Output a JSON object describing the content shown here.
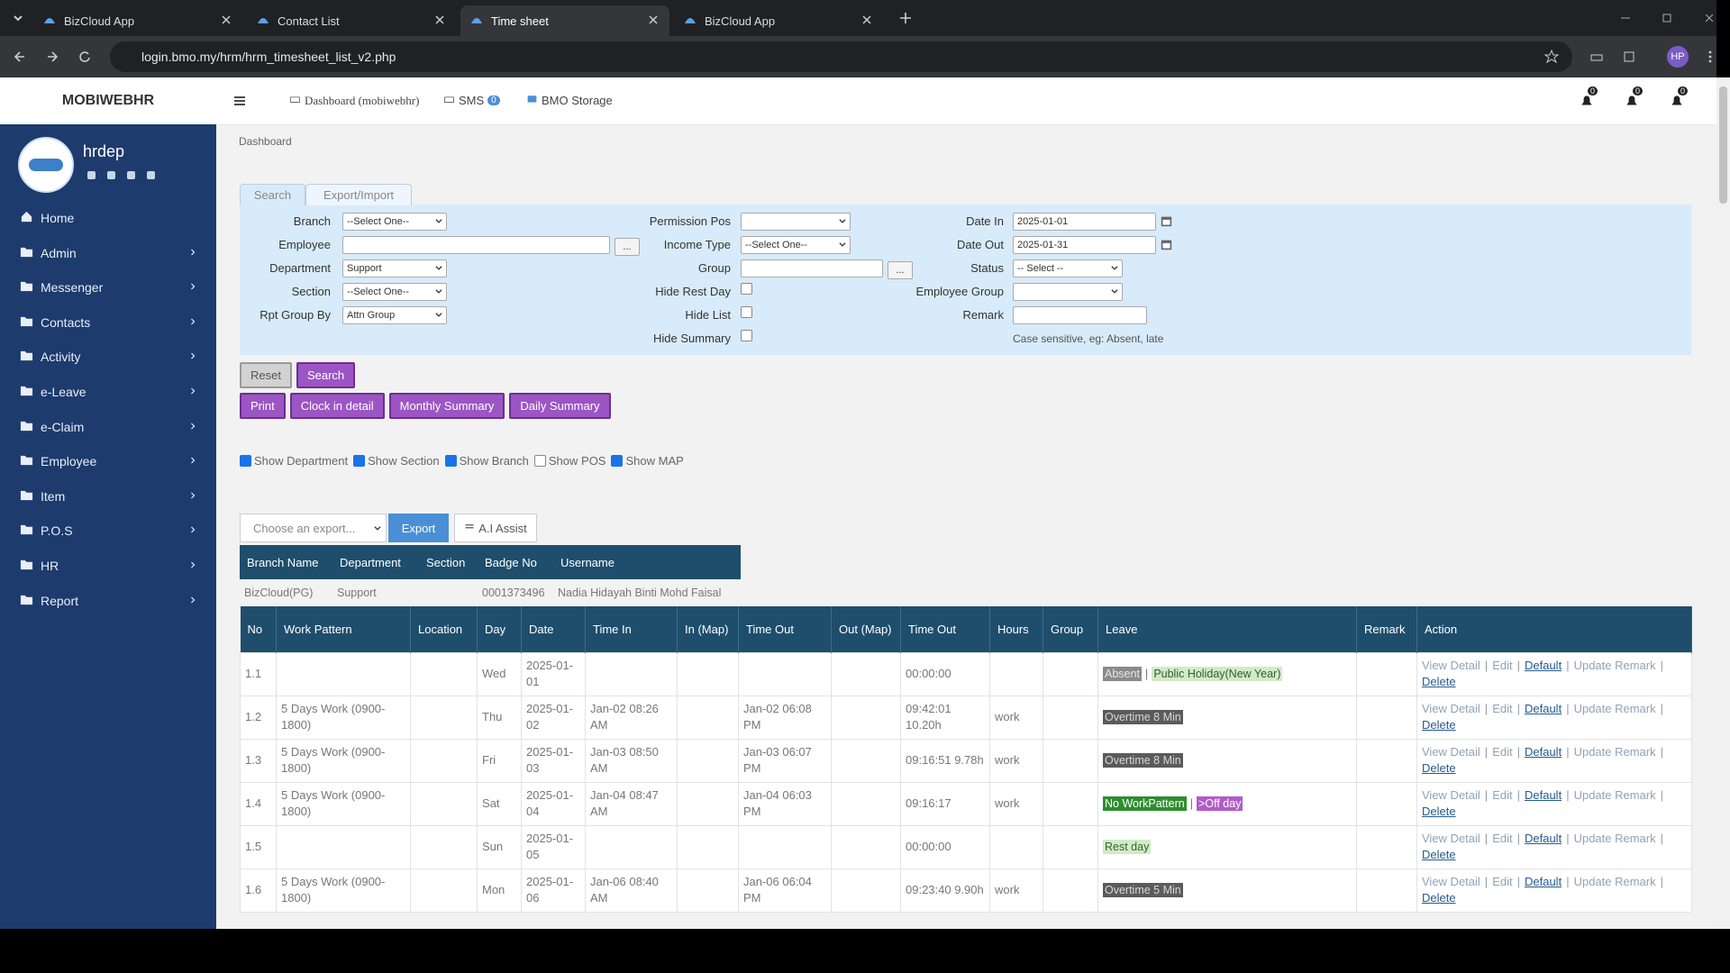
{
  "browser": {
    "tabs": [
      "BizCloud App",
      "Contact List",
      "Time sheet",
      "BizCloud App"
    ],
    "active_tab": 2,
    "url": "login.bmo.my/hrm/hrm_timesheet_list_v2.php",
    "profile": "HP"
  },
  "nav": {
    "brand": "MOBIWEBHR",
    "links": [
      "Dashboard (mobiwebhr)",
      "SMS",
      "BMO Storage"
    ],
    "sms_badge": "0",
    "alerts": [
      "0",
      "0",
      "0"
    ]
  },
  "sidebar": {
    "user": "hrdep",
    "menu": [
      {
        "label": "Home",
        "submenu": false
      },
      {
        "label": "Admin",
        "submenu": true
      },
      {
        "label": "Messenger",
        "submenu": true
      },
      {
        "label": "Contacts",
        "submenu": true
      },
      {
        "label": "Activity",
        "submenu": true
      },
      {
        "label": "e-Leave",
        "submenu": true
      },
      {
        "label": "e-Claim",
        "submenu": true
      },
      {
        "label": "Employee",
        "submenu": true
      },
      {
        "label": "Item",
        "submenu": true
      },
      {
        "label": "P.O.S",
        "submenu": true
      },
      {
        "label": "HR",
        "submenu": true
      },
      {
        "label": "Report",
        "submenu": true
      }
    ]
  },
  "breadcrumb": "Dashboard",
  "search": {
    "tabs": [
      "Search",
      "Export/Import"
    ],
    "active_tab": 0,
    "columns": [
      [
        {
          "label": "Branch",
          "kind": "select",
          "value": "--Select One--"
        },
        {
          "label": "Employee",
          "kind": "input",
          "lookup": "..."
        },
        {
          "label": "Department",
          "kind": "select",
          "value": "Support"
        },
        {
          "label": "Section",
          "kind": "select",
          "value": "--Select One--"
        },
        {
          "label": "Rpt Group By",
          "kind": "select",
          "value": "Attn Group"
        }
      ],
      [
        {
          "label": "Permission Pos",
          "kind": "select"
        },
        {
          "label": "Income Type",
          "kind": "select",
          "value": "--Select One--"
        },
        {
          "label": "Group",
          "kind": "input",
          "lookup": "..."
        },
        {
          "label": "Hide Rest Day",
          "kind": "check",
          "checked": false
        },
        {
          "label": "Hide List",
          "kind": "check",
          "checked": false
        },
        {
          "label": "Hide Summary",
          "kind": "check",
          "checked": false
        }
      ],
      [
        {
          "label": "Date In",
          "kind": "date",
          "value": "2025-01-01"
        },
        {
          "label": "Date Out",
          "kind": "date",
          "value": "2025-01-31"
        },
        {
          "label": "Status",
          "kind": "select",
          "value": "-- Select --"
        },
        {
          "label": "Employee Group",
          "kind": "select"
        },
        {
          "label": "Remark",
          "kind": "input"
        }
      ]
    ],
    "note": "Case sensitive, eg: Absent, late"
  },
  "buttons": {
    "row1": [
      "Reset",
      "Search"
    ],
    "row2": [
      "Print",
      "Clock in detail",
      "Monthly Summary",
      "Daily Summary"
    ]
  },
  "toggles": [
    {
      "label": "Show Department",
      "checked": true
    },
    {
      "label": "Show Section",
      "checked": true
    },
    {
      "label": "Show Branch",
      "checked": true
    },
    {
      "label": "Show POS",
      "checked": false
    },
    {
      "label": "Show MAP",
      "checked": true
    }
  ],
  "export": {
    "placeholder": "Choose an export...",
    "button": "Export",
    "assist": "A.I Assist"
  },
  "employee": {
    "headers": [
      "Branch Name",
      "Department",
      "Section",
      "Badge No",
      "Username"
    ],
    "row": [
      "BizCloud(PG)",
      "Support",
      null,
      "0001373496",
      "Nadia Hidayah Binti Mohd Faisal"
    ]
  },
  "timesheet": {
    "headers": [
      "No",
      "Work Pattern",
      "Location",
      "Day",
      "Date",
      "Time In",
      "In (Map)",
      "Time Out",
      "Out (Map)",
      "Time Out",
      "Hours",
      "Group",
      "Leave",
      "Remark",
      "Action"
    ],
    "separator": "|",
    "actions": [
      "View Detail",
      "Edit",
      "Default",
      "Update Remark",
      "Delete"
    ],
    "rows": [
      {
        "cells": [
          "1.1",
          null,
          null,
          "Wed",
          "2025-01-01",
          null,
          null,
          null,
          null,
          "00:00:00",
          null,
          null
        ],
        "leave": [
          {
            "text": "Absent",
            "kind": "absent"
          },
          {
            "text": "Public Holiday(New Year)",
            "kind": "holiday"
          }
        ]
      },
      {
        "cells": [
          "1.2",
          "5 Days Work (0900-1800)",
          null,
          "Thu",
          "2025-01-02",
          "Jan-02 08:26 AM",
          null,
          "Jan-02 06:08 PM",
          null,
          "09:42:01 10.20h",
          "work",
          null
        ],
        "leave": [
          {
            "text": "Overtime 8 Min",
            "kind": "overtime"
          }
        ]
      },
      {
        "cells": [
          "1.3",
          "5 Days Work (0900-1800)",
          null,
          "Fri",
          "2025-01-03",
          "Jan-03 08:50 AM",
          null,
          "Jan-03 06:07 PM",
          null,
          "09:16:51 9.78h",
          "work",
          null
        ],
        "leave": [
          {
            "text": "Overtime 8 Min",
            "kind": "overtime"
          }
        ]
      },
      {
        "cells": [
          "1.4",
          "5 Days Work (0900-1800)",
          null,
          "Sat",
          "2025-01-04",
          "Jan-04 08:47 AM",
          null,
          "Jan-04 06:03 PM",
          null,
          "09:16:17",
          "work",
          null
        ],
        "leave": [
          {
            "text": "No WorkPattern",
            "kind": "nowp"
          },
          {
            "text": ">Off day",
            "kind": "offday"
          }
        ]
      },
      {
        "cells": [
          "1.5",
          null,
          null,
          "Sun",
          "2025-01-05",
          null,
          null,
          null,
          null,
          "00:00:00",
          null,
          null
        ],
        "leave": [
          {
            "text": "Rest day",
            "kind": "rest"
          }
        ]
      },
      {
        "cells": [
          "1.6",
          "5 Days Work (0900-1800)",
          null,
          "Mon",
          "2025-01-06",
          "Jan-06 08:40 AM",
          null,
          "Jan-06 06:04 PM",
          null,
          "09:23:40 9.90h",
          "work",
          null
        ],
        "leave": [
          {
            "text": "Overtime 5 Min",
            "kind": "overtime"
          }
        ]
      }
    ]
  }
}
